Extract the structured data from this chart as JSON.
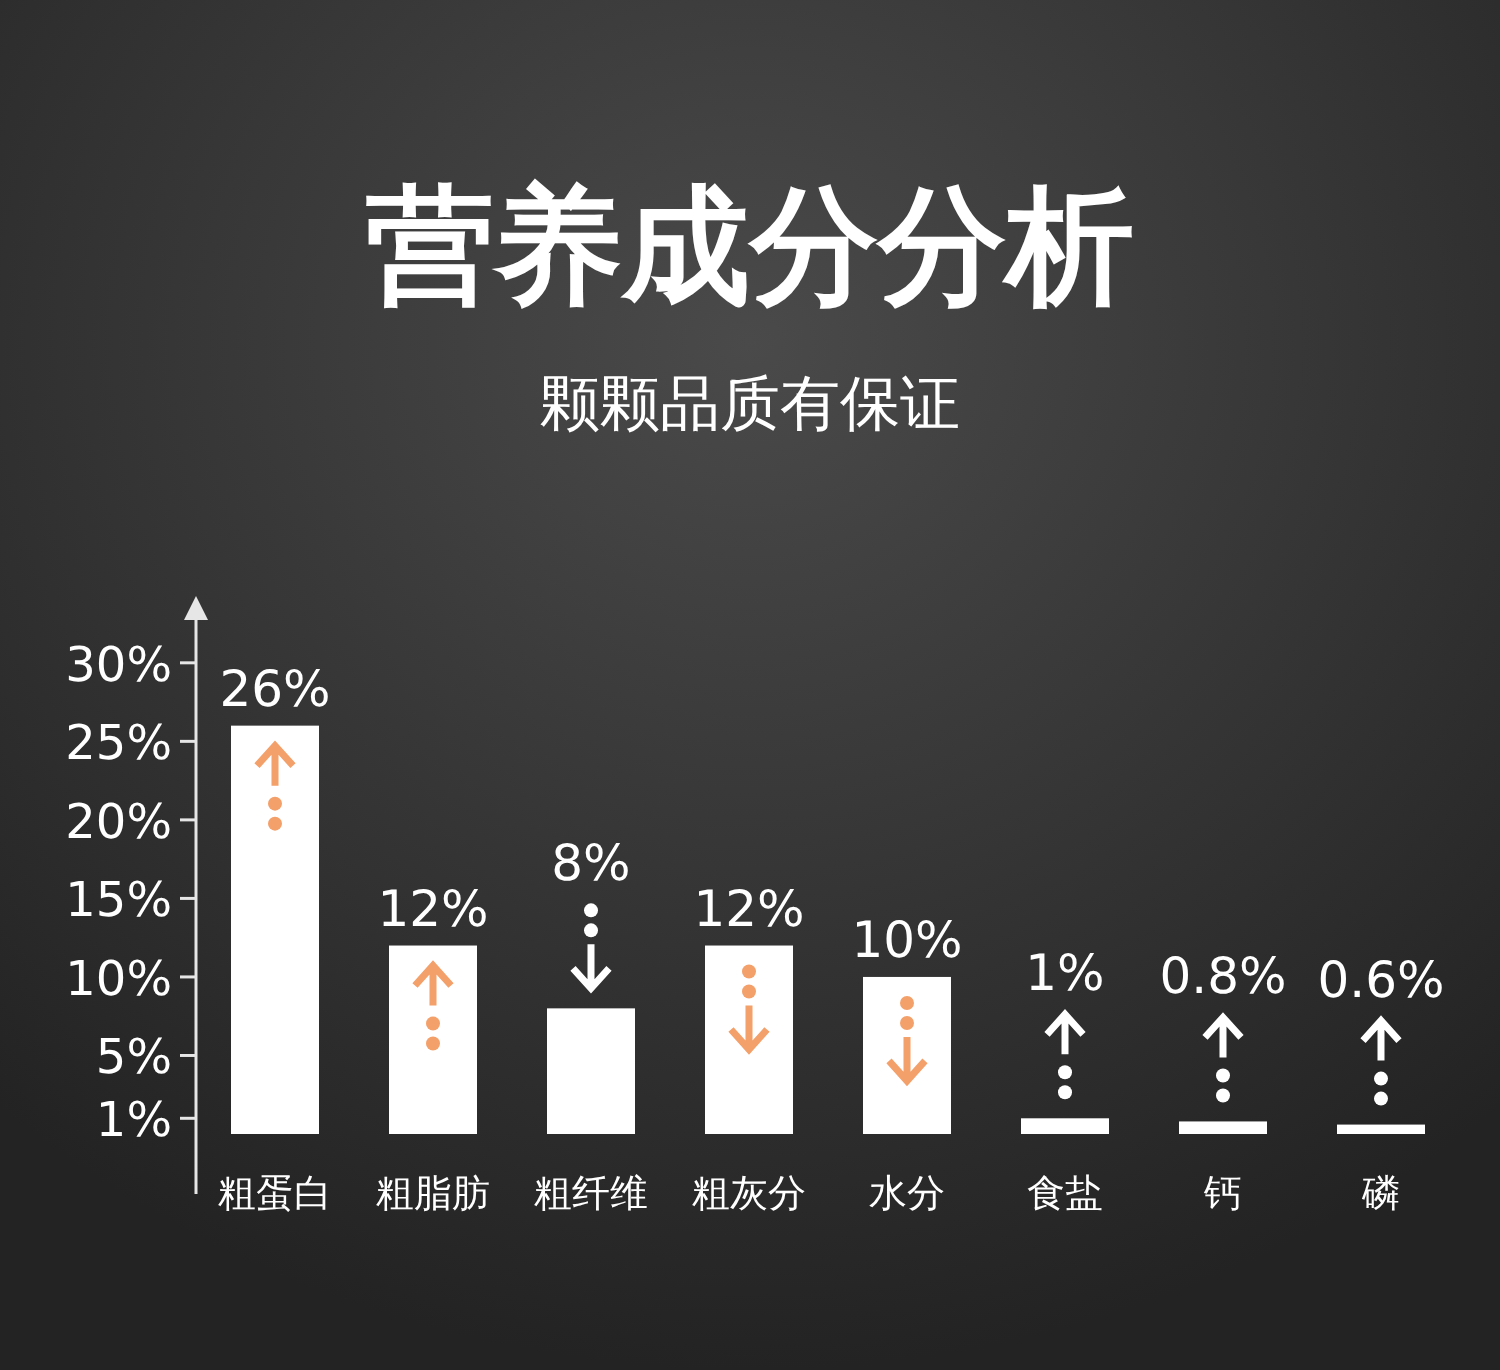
{
  "chart_data": {
    "type": "bar",
    "title": "营养成分分析",
    "subtitle": "颗颗品质有保证",
    "categories": [
      "粗蛋白",
      "粗脂肪",
      "粗纤维",
      "粗灰分",
      "水分",
      "食盐",
      "钙",
      "磷"
    ],
    "values": [
      26,
      12,
      8,
      12,
      10,
      1,
      0.8,
      0.6
    ],
    "value_labels": [
      "26%",
      "12%",
      "8%",
      "12%",
      "10%",
      "1%",
      "0.8%",
      "0.6%"
    ],
    "color": "#ffffff",
    "data_labels": false,
    "ylim": [
      0,
      34
    ],
    "yticks": [
      {
        "value": 1,
        "label": "1%"
      },
      {
        "value": 5,
        "label": "5%"
      },
      {
        "value": 10,
        "label": "10%"
      },
      {
        "value": 15,
        "label": "15%"
      },
      {
        "value": 20,
        "label": "20%"
      },
      {
        "value": 25,
        "label": "25%"
      },
      {
        "value": 30,
        "label": "30%"
      }
    ],
    "grid": false
  }
}
